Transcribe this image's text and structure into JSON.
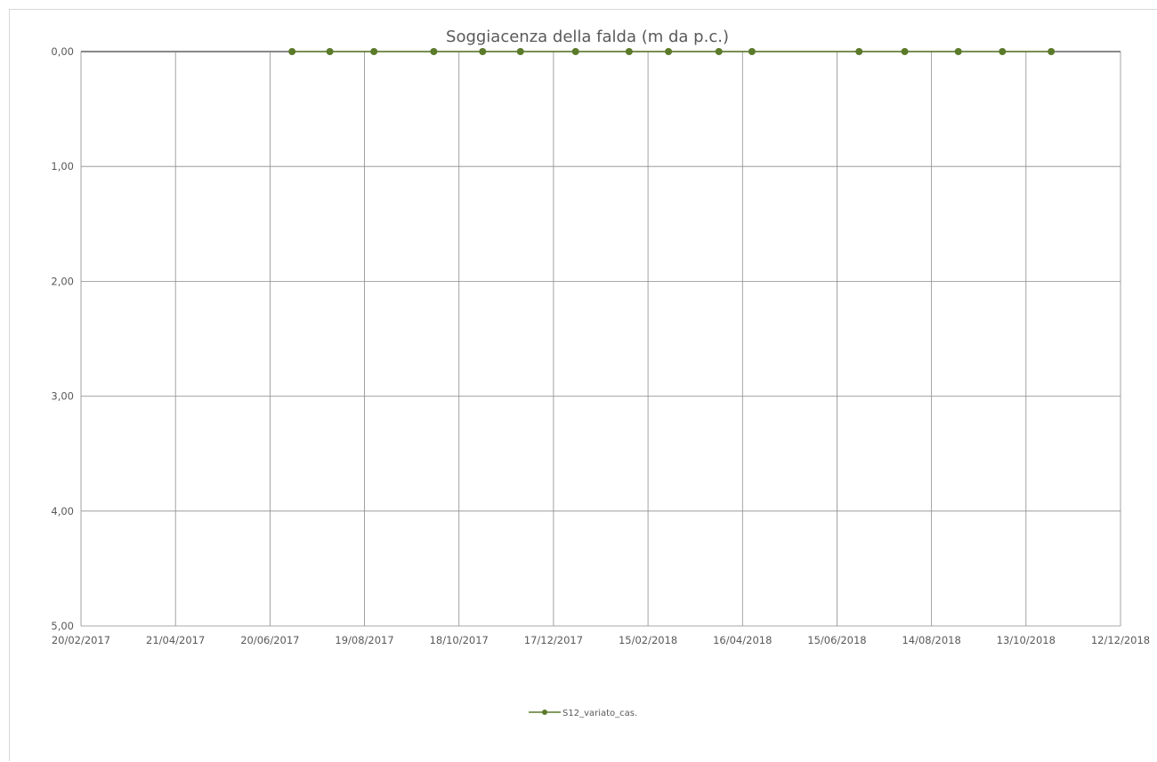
{
  "chart_data": {
    "type": "line",
    "title": "Soggiacenza della falda (m da p.c.)",
    "xlabel": "",
    "ylabel": "",
    "x_axis": {
      "type": "date",
      "min": "2017-02-20",
      "max": "2018-12-12",
      "tick_labels": [
        "20/02/2017",
        "21/04/2017",
        "20/06/2017",
        "19/08/2017",
        "18/10/2017",
        "17/12/2017",
        "15/02/2018",
        "16/04/2018",
        "15/06/2018",
        "14/08/2018",
        "13/10/2018",
        "12/12/2018"
      ]
    },
    "y_axis": {
      "reversed": true,
      "min": 0,
      "max": 5,
      "tick_labels": [
        "0,00",
        "1,00",
        "2,00",
        "3,00",
        "4,00",
        "5,00"
      ]
    },
    "grid": true,
    "legend_position": "bottom",
    "series": [
      {
        "name": "S12_variato_cas.",
        "color": "#5b7a2a",
        "marker": "circle",
        "x": [
          "2017-07-04",
          "2017-07-28",
          "2017-08-25",
          "2017-10-02",
          "2017-11-02",
          "2017-11-26",
          "2017-12-31",
          "2018-02-03",
          "2018-02-28",
          "2018-04-01",
          "2018-04-22",
          "2018-06-29",
          "2018-07-28",
          "2018-08-31",
          "2018-09-28",
          "2018-10-29"
        ],
        "y": [
          0,
          0,
          0,
          0,
          0,
          0,
          0,
          0,
          0,
          0,
          0,
          0,
          0,
          0,
          0,
          0
        ]
      }
    ]
  }
}
